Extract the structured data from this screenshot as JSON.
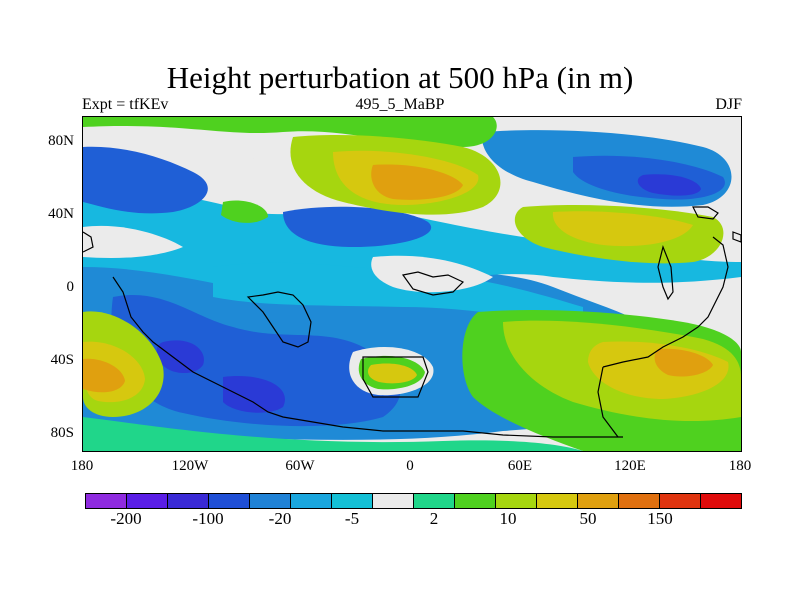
{
  "title": "Height perturbation at 500 hPa (in m)",
  "subtitle_left": "Expt = tfKEv",
  "subtitle_center": "495_5_MaBP",
  "subtitle_right": "DJF",
  "lat_labels": [
    "80N",
    "40N",
    "0",
    "40S",
    "80S"
  ],
  "lon_labels": [
    "180",
    "120W",
    "60W",
    "0",
    "60E",
    "120E",
    "180"
  ],
  "colorbar": {
    "colors": [
      "#8f2be0",
      "#5a1ee6",
      "#3a2ad6",
      "#1f4fd6",
      "#1f82d6",
      "#1aa6de",
      "#14c0d6",
      "#eaeaea",
      "#20d68a",
      "#4fd11f",
      "#a6d60f",
      "#d6c80f",
      "#e0a00f",
      "#e0700f",
      "#e0340f",
      "#e00b0b"
    ],
    "labels": [
      "-200",
      "-100",
      "-20",
      "-5",
      "2",
      "10",
      "50",
      "150"
    ]
  },
  "field_colors": {
    "background": "#ebebeb",
    "deep_blue": "#2a3ad6",
    "blue": "#1f5fd6",
    "mid_blue": "#1f8ad6",
    "light_blue": "#17b8e0",
    "neutral": "#ebebeb",
    "teal": "#20d68a",
    "green": "#4fd11f",
    "yellow_green": "#a6d60f",
    "yellow": "#d6c80f",
    "orange": "#e0a00f"
  }
}
